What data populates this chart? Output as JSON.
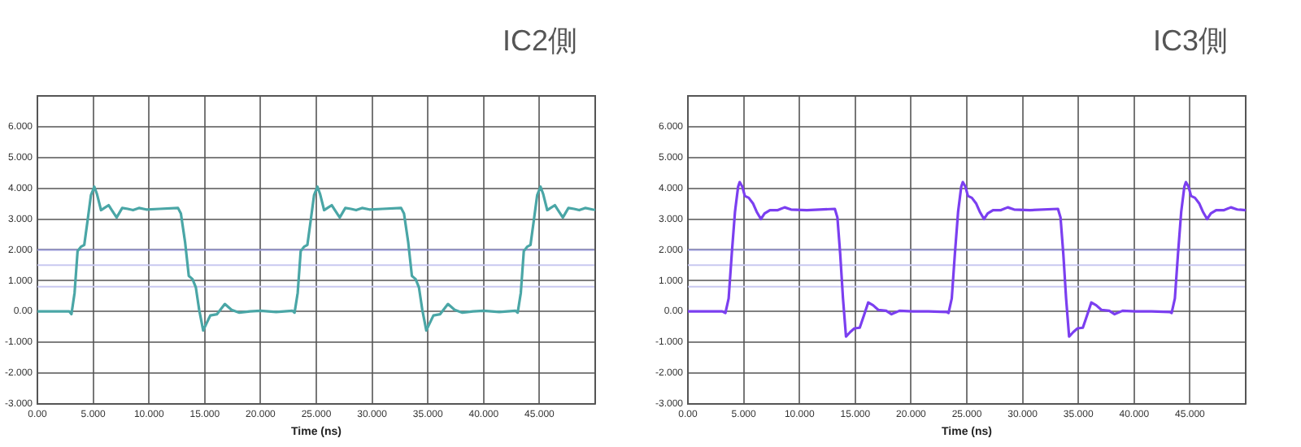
{
  "chart_data": [
    {
      "type": "line",
      "title": "IC2側",
      "xlabel": "Time (ns)",
      "xlim": [
        0,
        50
      ],
      "ylim": [
        -3,
        7
      ],
      "xticks": [
        {
          "value": 0,
          "label": "0.00"
        },
        {
          "value": 5,
          "label": "5.000"
        },
        {
          "value": 10,
          "label": "10.000"
        },
        {
          "value": 15,
          "label": "15.000"
        },
        {
          "value": 20,
          "label": "20.000"
        },
        {
          "value": 25,
          "label": "25.000"
        },
        {
          "value": 30,
          "label": "30.000"
        },
        {
          "value": 35,
          "label": "35.000"
        },
        {
          "value": 40,
          "label": "40.000"
        },
        {
          "value": 45,
          "label": "45.000"
        }
      ],
      "yticks": [
        {
          "value": -3,
          "label": "-3.000"
        },
        {
          "value": -2,
          "label": "-2.000"
        },
        {
          "value": -1,
          "label": "-1.000"
        },
        {
          "value": 0,
          "label": "0.00"
        },
        {
          "value": 1,
          "label": "1.000"
        },
        {
          "value": 2,
          "label": "2.000"
        },
        {
          "value": 3,
          "label": "3.000"
        },
        {
          "value": 4,
          "label": "4.000"
        },
        {
          "value": 5,
          "label": "5.000"
        },
        {
          "value": 6,
          "label": "6.000"
        }
      ],
      "grid": true,
      "marker": "none",
      "line_style": "solid",
      "ref_lines": [
        {
          "axis": "y",
          "value": 2,
          "color": "#9a9ad8"
        },
        {
          "axis": "y",
          "value": 1.5,
          "color": "#c8c8f0"
        },
        {
          "axis": "y",
          "value": 0.8,
          "color": "#c8c8f0"
        }
      ],
      "series": [
        {
          "color": "#4aa6a6",
          "x": [
            0,
            2.86,
            3.05,
            3.33,
            3.6,
            3.9,
            4.2,
            4.5,
            4.8,
            5.1,
            5.33,
            5.7,
            6.0,
            6.38,
            6.67,
            7.1,
            7.6,
            8.1,
            8.57,
            9.1,
            9.76,
            10.95,
            12.6,
            12.86,
            13.24,
            13.57,
            13.9,
            14.2,
            14.5,
            14.86,
            15.14,
            15.5,
            16.1,
            16.8,
            17.4,
            18.1,
            19.05,
            20,
            21.4,
            22.86,
            23.05,
            23.33,
            23.6,
            23.9,
            24.2,
            24.5,
            24.8,
            25.1,
            25.33,
            25.7,
            26.0,
            26.38,
            26.67,
            27.1,
            27.6,
            28.1,
            28.57,
            29.1,
            29.76,
            30.95,
            32.6,
            32.86,
            33.24,
            33.57,
            33.9,
            34.2,
            34.5,
            34.86,
            35.14,
            35.5,
            36.1,
            36.8,
            37.4,
            38.1,
            39.05,
            40,
            41.4,
            42.86,
            43.05,
            43.33,
            43.6,
            43.9,
            44.2,
            44.5,
            44.8,
            45.1,
            45.33,
            45.7,
            46.0,
            46.38,
            46.67,
            47.1,
            47.6,
            48.1,
            48.57,
            49.1,
            49.76,
            50
          ],
          "values": [
            0,
            0,
            -0.09,
            0.6,
            1.96,
            2.1,
            2.16,
            2.96,
            3.78,
            4.05,
            3.82,
            3.29,
            3.36,
            3.45,
            3.29,
            3.05,
            3.36,
            3.33,
            3.29,
            3.36,
            3.31,
            3.33,
            3.36,
            3.18,
            2.24,
            1.15,
            1.05,
            0.78,
            0.05,
            -0.62,
            -0.4,
            -0.13,
            -0.09,
            0.24,
            0.05,
            -0.04,
            0,
            0.02,
            -0.02,
            0.02,
            -0.04,
            0.6,
            1.96,
            2.1,
            2.16,
            2.96,
            3.78,
            4.05,
            3.82,
            3.29,
            3.36,
            3.45,
            3.29,
            3.05,
            3.36,
            3.33,
            3.29,
            3.36,
            3.31,
            3.33,
            3.36,
            3.18,
            2.24,
            1.15,
            1.05,
            0.78,
            0.05,
            -0.62,
            -0.4,
            -0.13,
            -0.09,
            0.24,
            0.05,
            -0.04,
            0,
            0.02,
            -0.02,
            0.02,
            -0.04,
            0.6,
            1.96,
            2.1,
            2.16,
            2.96,
            3.78,
            4.05,
            3.82,
            3.29,
            3.36,
            3.45,
            3.29,
            3.05,
            3.36,
            3.33,
            3.29,
            3.36,
            3.31,
            3.3
          ]
        }
      ]
    },
    {
      "type": "line",
      "title": "IC3側",
      "xlabel": "Time (ns)",
      "xlim": [
        0,
        50
      ],
      "ylim": [
        -3,
        7
      ],
      "xticks": [
        {
          "value": 0,
          "label": "0.00"
        },
        {
          "value": 5,
          "label": "5.000"
        },
        {
          "value": 10,
          "label": "10.000"
        },
        {
          "value": 15,
          "label": "15.000"
        },
        {
          "value": 20,
          "label": "20.000"
        },
        {
          "value": 25,
          "label": "25.000"
        },
        {
          "value": 30,
          "label": "30.000"
        },
        {
          "value": 35,
          "label": "35.000"
        },
        {
          "value": 40,
          "label": "40.000"
        },
        {
          "value": 45,
          "label": "45.000"
        }
      ],
      "yticks": [
        {
          "value": -3,
          "label": "-3.000"
        },
        {
          "value": -2,
          "label": "-2.000"
        },
        {
          "value": -1,
          "label": "-1.000"
        },
        {
          "value": 0,
          "label": "0.00"
        },
        {
          "value": 1,
          "label": "1.000"
        },
        {
          "value": 2,
          "label": "2.000"
        },
        {
          "value": 3,
          "label": "3.000"
        },
        {
          "value": 4,
          "label": "4.000"
        },
        {
          "value": 5,
          "label": "5.000"
        },
        {
          "value": 6,
          "label": "6.000"
        }
      ],
      "grid": true,
      "marker": "none",
      "line_style": "solid",
      "ref_lines": [
        {
          "axis": "y",
          "value": 2,
          "color": "#9a9ad8"
        },
        {
          "axis": "y",
          "value": 1.5,
          "color": "#c8c8f0"
        },
        {
          "axis": "y",
          "value": 0.8,
          "color": "#c8c8f0"
        }
      ],
      "series": [
        {
          "color": "#7b3ff0",
          "x": [
            0,
            3.08,
            3.36,
            3.65,
            3.93,
            4.22,
            4.5,
            4.64,
            4.88,
            5.1,
            5.45,
            5.83,
            6.16,
            6.54,
            6.87,
            7.35,
            8.06,
            8.67,
            9.24,
            10.66,
            13.17,
            13.4,
            13.65,
            13.9,
            14.17,
            14.55,
            14.93,
            15.4,
            15.78,
            16.16,
            16.6,
            17.06,
            17.77,
            18.25,
            18.96,
            20.14,
            21.56,
            23.2,
            23.36,
            23.65,
            23.93,
            24.22,
            24.5,
            24.64,
            24.88,
            25.1,
            25.45,
            25.83,
            26.16,
            26.54,
            26.87,
            27.35,
            28.06,
            28.67,
            29.24,
            30.66,
            33.17,
            33.4,
            33.65,
            33.9,
            34.17,
            34.55,
            34.93,
            35.4,
            35.78,
            36.16,
            36.6,
            37.06,
            37.77,
            38.25,
            38.96,
            40.14,
            41.56,
            43.2,
            43.36,
            43.65,
            43.93,
            44.22,
            44.5,
            44.64,
            44.88,
            45.1,
            45.45,
            45.83,
            46.16,
            46.54,
            46.87,
            47.35,
            48.06,
            48.67,
            49.24,
            50
          ],
          "values": [
            0,
            0,
            -0.05,
            0.42,
            1.87,
            3.24,
            4.05,
            4.2,
            4.05,
            3.75,
            3.69,
            3.51,
            3.24,
            3.0,
            3.18,
            3.29,
            3.29,
            3.38,
            3.31,
            3.29,
            3.33,
            3.05,
            1.87,
            0.42,
            -0.82,
            -0.67,
            -0.55,
            -0.53,
            -0.13,
            0.29,
            0.2,
            0.05,
            0.02,
            -0.09,
            0.02,
            0,
            0,
            -0.02,
            -0.05,
            0.42,
            1.87,
            3.24,
            4.05,
            4.2,
            4.05,
            3.75,
            3.69,
            3.51,
            3.24,
            3.0,
            3.18,
            3.29,
            3.29,
            3.38,
            3.31,
            3.29,
            3.33,
            3.05,
            1.87,
            0.42,
            -0.82,
            -0.67,
            -0.55,
            -0.53,
            -0.13,
            0.29,
            0.2,
            0.05,
            0.02,
            -0.09,
            0.02,
            0,
            0,
            -0.02,
            -0.05,
            0.42,
            1.87,
            3.24,
            4.05,
            4.2,
            4.05,
            3.75,
            3.69,
            3.51,
            3.24,
            3.0,
            3.18,
            3.29,
            3.29,
            3.38,
            3.31,
            3.29
          ]
        }
      ]
    }
  ]
}
